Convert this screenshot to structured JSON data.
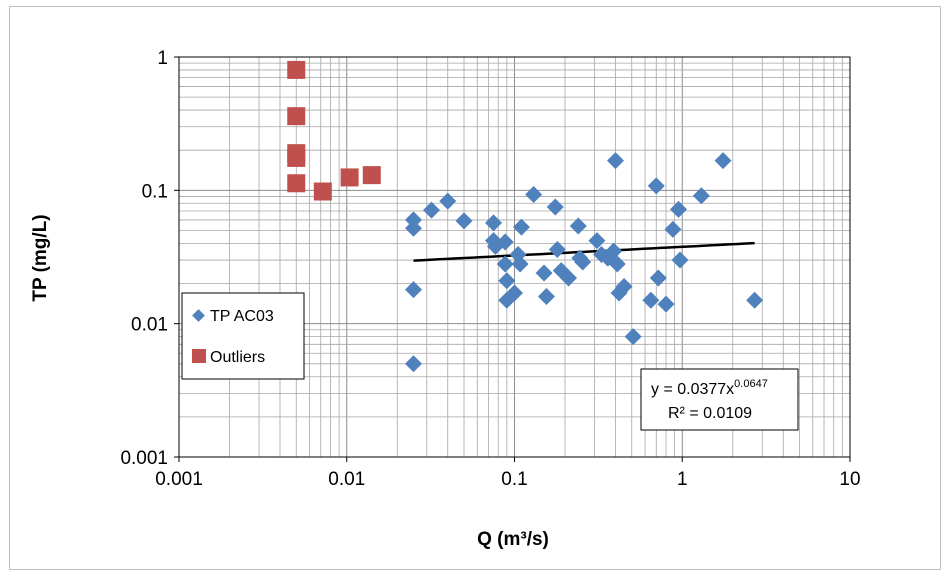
{
  "chart_data": {
    "type": "scatter",
    "xlabel": "Q (m³/s)",
    "ylabel": "TP (mg/L)",
    "x_scale": "log",
    "y_scale": "log",
    "xlim": [
      0.001,
      10
    ],
    "ylim": [
      0.001,
      1
    ],
    "x_ticks": [
      "0.001",
      "0.01",
      "0.1",
      "1",
      "10"
    ],
    "y_ticks": [
      "0.001",
      "0.01",
      "0.1",
      "1"
    ],
    "grid": true,
    "legend_position": "left",
    "series": [
      {
        "name": "TP AC03",
        "marker": "diamond",
        "color": "#4f81bd",
        "points": [
          [
            0.025,
            0.06
          ],
          [
            0.025,
            0.052
          ],
          [
            0.025,
            0.018
          ],
          [
            0.025,
            0.005
          ],
          [
            0.032,
            0.071
          ],
          [
            0.04,
            0.083
          ],
          [
            0.05,
            0.059
          ],
          [
            0.075,
            0.057
          ],
          [
            0.075,
            0.042
          ],
          [
            0.077,
            0.038
          ],
          [
            0.088,
            0.041
          ],
          [
            0.088,
            0.028
          ],
          [
            0.09,
            0.021
          ],
          [
            0.09,
            0.015
          ],
          [
            0.1,
            0.017
          ],
          [
            0.105,
            0.033
          ],
          [
            0.108,
            0.028
          ],
          [
            0.11,
            0.053
          ],
          [
            0.13,
            0.093
          ],
          [
            0.15,
            0.024
          ],
          [
            0.155,
            0.016
          ],
          [
            0.175,
            0.075
          ],
          [
            0.18,
            0.036
          ],
          [
            0.19,
            0.025
          ],
          [
            0.21,
            0.022
          ],
          [
            0.24,
            0.054
          ],
          [
            0.245,
            0.031
          ],
          [
            0.255,
            0.029
          ],
          [
            0.31,
            0.042
          ],
          [
            0.33,
            0.033
          ],
          [
            0.36,
            0.031
          ],
          [
            0.39,
            0.035
          ],
          [
            0.4,
            0.167
          ],
          [
            0.41,
            0.028
          ],
          [
            0.42,
            0.017
          ],
          [
            0.45,
            0.019
          ],
          [
            0.51,
            0.008
          ],
          [
            0.65,
            0.015
          ],
          [
            0.7,
            0.108
          ],
          [
            0.72,
            0.022
          ],
          [
            0.8,
            0.014
          ],
          [
            0.88,
            0.051
          ],
          [
            0.95,
            0.072
          ],
          [
            0.97,
            0.03
          ],
          [
            1.3,
            0.091
          ],
          [
            1.75,
            0.167
          ],
          [
            2.7,
            0.015
          ]
        ]
      },
      {
        "name": "Outliers",
        "marker": "square",
        "color": "#c0504d",
        "points": [
          [
            0.005,
            0.8
          ],
          [
            0.005,
            0.36
          ],
          [
            0.005,
            0.19
          ],
          [
            0.005,
            0.175
          ],
          [
            0.005,
            0.113
          ],
          [
            0.0072,
            0.098
          ],
          [
            0.0104,
            0.125
          ],
          [
            0.0141,
            0.13
          ]
        ]
      }
    ],
    "trendline": {
      "type": "power",
      "color": "#000000",
      "a": 0.0377,
      "b": 0.0647,
      "x_range": [
        0.025,
        2.7
      ],
      "equation_prefix": "y = 0.0377x",
      "equation_exponent": "0.0647",
      "r2_label": "R² = 0.0109"
    }
  }
}
